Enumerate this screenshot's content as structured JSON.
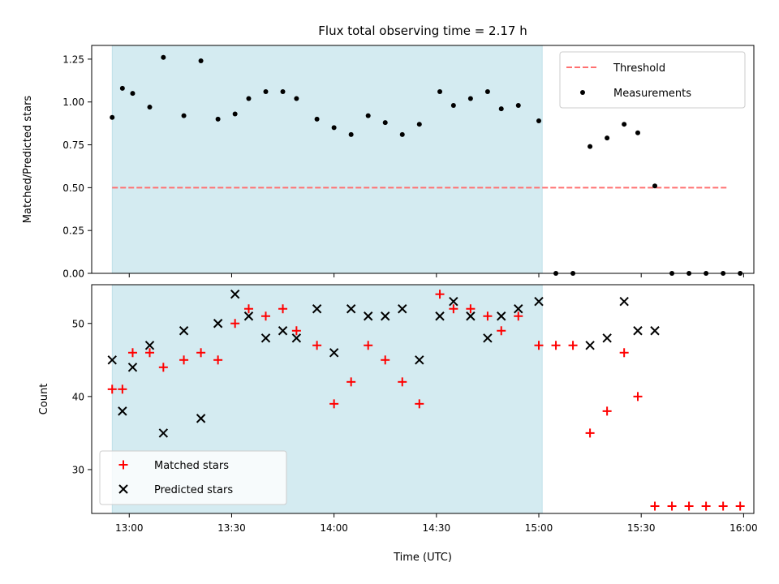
{
  "chart_data": {
    "type": "scatter",
    "title": "Flux total observing time = 2.17 h",
    "xlabel": "Time (UTC)",
    "x_range": [
      "12:49",
      "16:03"
    ],
    "x_ticks": [
      "13:00",
      "13:30",
      "14:00",
      "14:30",
      "15:00",
      "15:30",
      "16:00"
    ],
    "x_tick_times": [
      "13:00",
      "13:30",
      "14:00",
      "14:30",
      "15:00",
      "15:30",
      "16:00"
    ],
    "shaded_interval": [
      "12:55",
      "15:01"
    ],
    "shade_color": "#d4ebf1",
    "times": [
      "12:55",
      "12:58",
      "13:01",
      "13:06",
      "13:10",
      "13:16",
      "13:21",
      "13:26",
      "13:31",
      "13:35",
      "13:40",
      "13:45",
      "13:49",
      "13:55",
      "14:00",
      "14:05",
      "14:10",
      "14:15",
      "14:20",
      "14:25",
      "14:31",
      "14:35",
      "14:40",
      "14:45",
      "14:49",
      "14:54",
      "15:00",
      "15:05",
      "15:10",
      "15:15",
      "15:20",
      "15:25",
      "15:29",
      "15:34",
      "15:39",
      "15:44",
      "15:49",
      "15:54",
      "15:59"
    ],
    "top_panel": {
      "ylabel": "Matched/Predicted stars",
      "ylim": [
        0,
        1.33
      ],
      "yticks": [
        "0.00",
        "0.25",
        "0.50",
        "0.75",
        "1.00",
        "1.25"
      ],
      "threshold": {
        "name": "Threshold",
        "value": 0.5,
        "color": "#ff7070",
        "x_range": [
          "12:55",
          "15:55"
        ]
      },
      "measurements": {
        "name": "Measurements",
        "color": "#000000",
        "values": [
          0.91,
          1.08,
          1.05,
          0.97,
          1.26,
          0.92,
          1.24,
          0.9,
          0.93,
          1.02,
          1.06,
          1.06,
          1.02,
          0.9,
          0.85,
          0.81,
          0.92,
          0.88,
          0.81,
          0.87,
          1.06,
          0.98,
          1.02,
          1.06,
          0.96,
          0.98,
          0.89,
          0.0,
          0.0,
          0.74,
          0.79,
          0.87,
          0.82,
          0.51,
          0.0,
          0.0,
          0.0,
          0.0,
          0.0
        ]
      },
      "legend_position": "top-right"
    },
    "bottom_panel": {
      "ylabel": "Count",
      "ylim": [
        24,
        55.3
      ],
      "yticks": [
        "30",
        "40",
        "50"
      ],
      "series": [
        {
          "name": "Matched stars",
          "marker": "plus",
          "color": "#ff0000",
          "values": [
            41,
            41,
            46,
            46,
            44,
            45,
            46,
            45,
            50,
            52,
            51,
            52,
            49,
            47,
            39,
            42,
            47,
            45,
            42,
            39,
            54,
            52,
            52,
            51,
            49,
            51,
            47,
            47,
            47,
            35,
            38,
            46,
            40,
            25,
            25,
            25,
            25,
            25,
            25
          ]
        },
        {
          "name": "Predicted stars",
          "marker": "cross",
          "color": "#000000",
          "values": [
            45,
            38,
            44,
            47,
            35,
            49,
            37,
            50,
            54,
            51,
            48,
            49,
            48,
            52,
            46,
            52,
            51,
            51,
            52,
            45,
            51,
            53,
            51,
            48,
            51,
            52,
            53,
            null,
            null,
            47,
            48,
            53,
            49,
            49,
            null,
            null,
            null,
            null,
            null
          ]
        }
      ],
      "legend_position": "bottom-left"
    }
  }
}
